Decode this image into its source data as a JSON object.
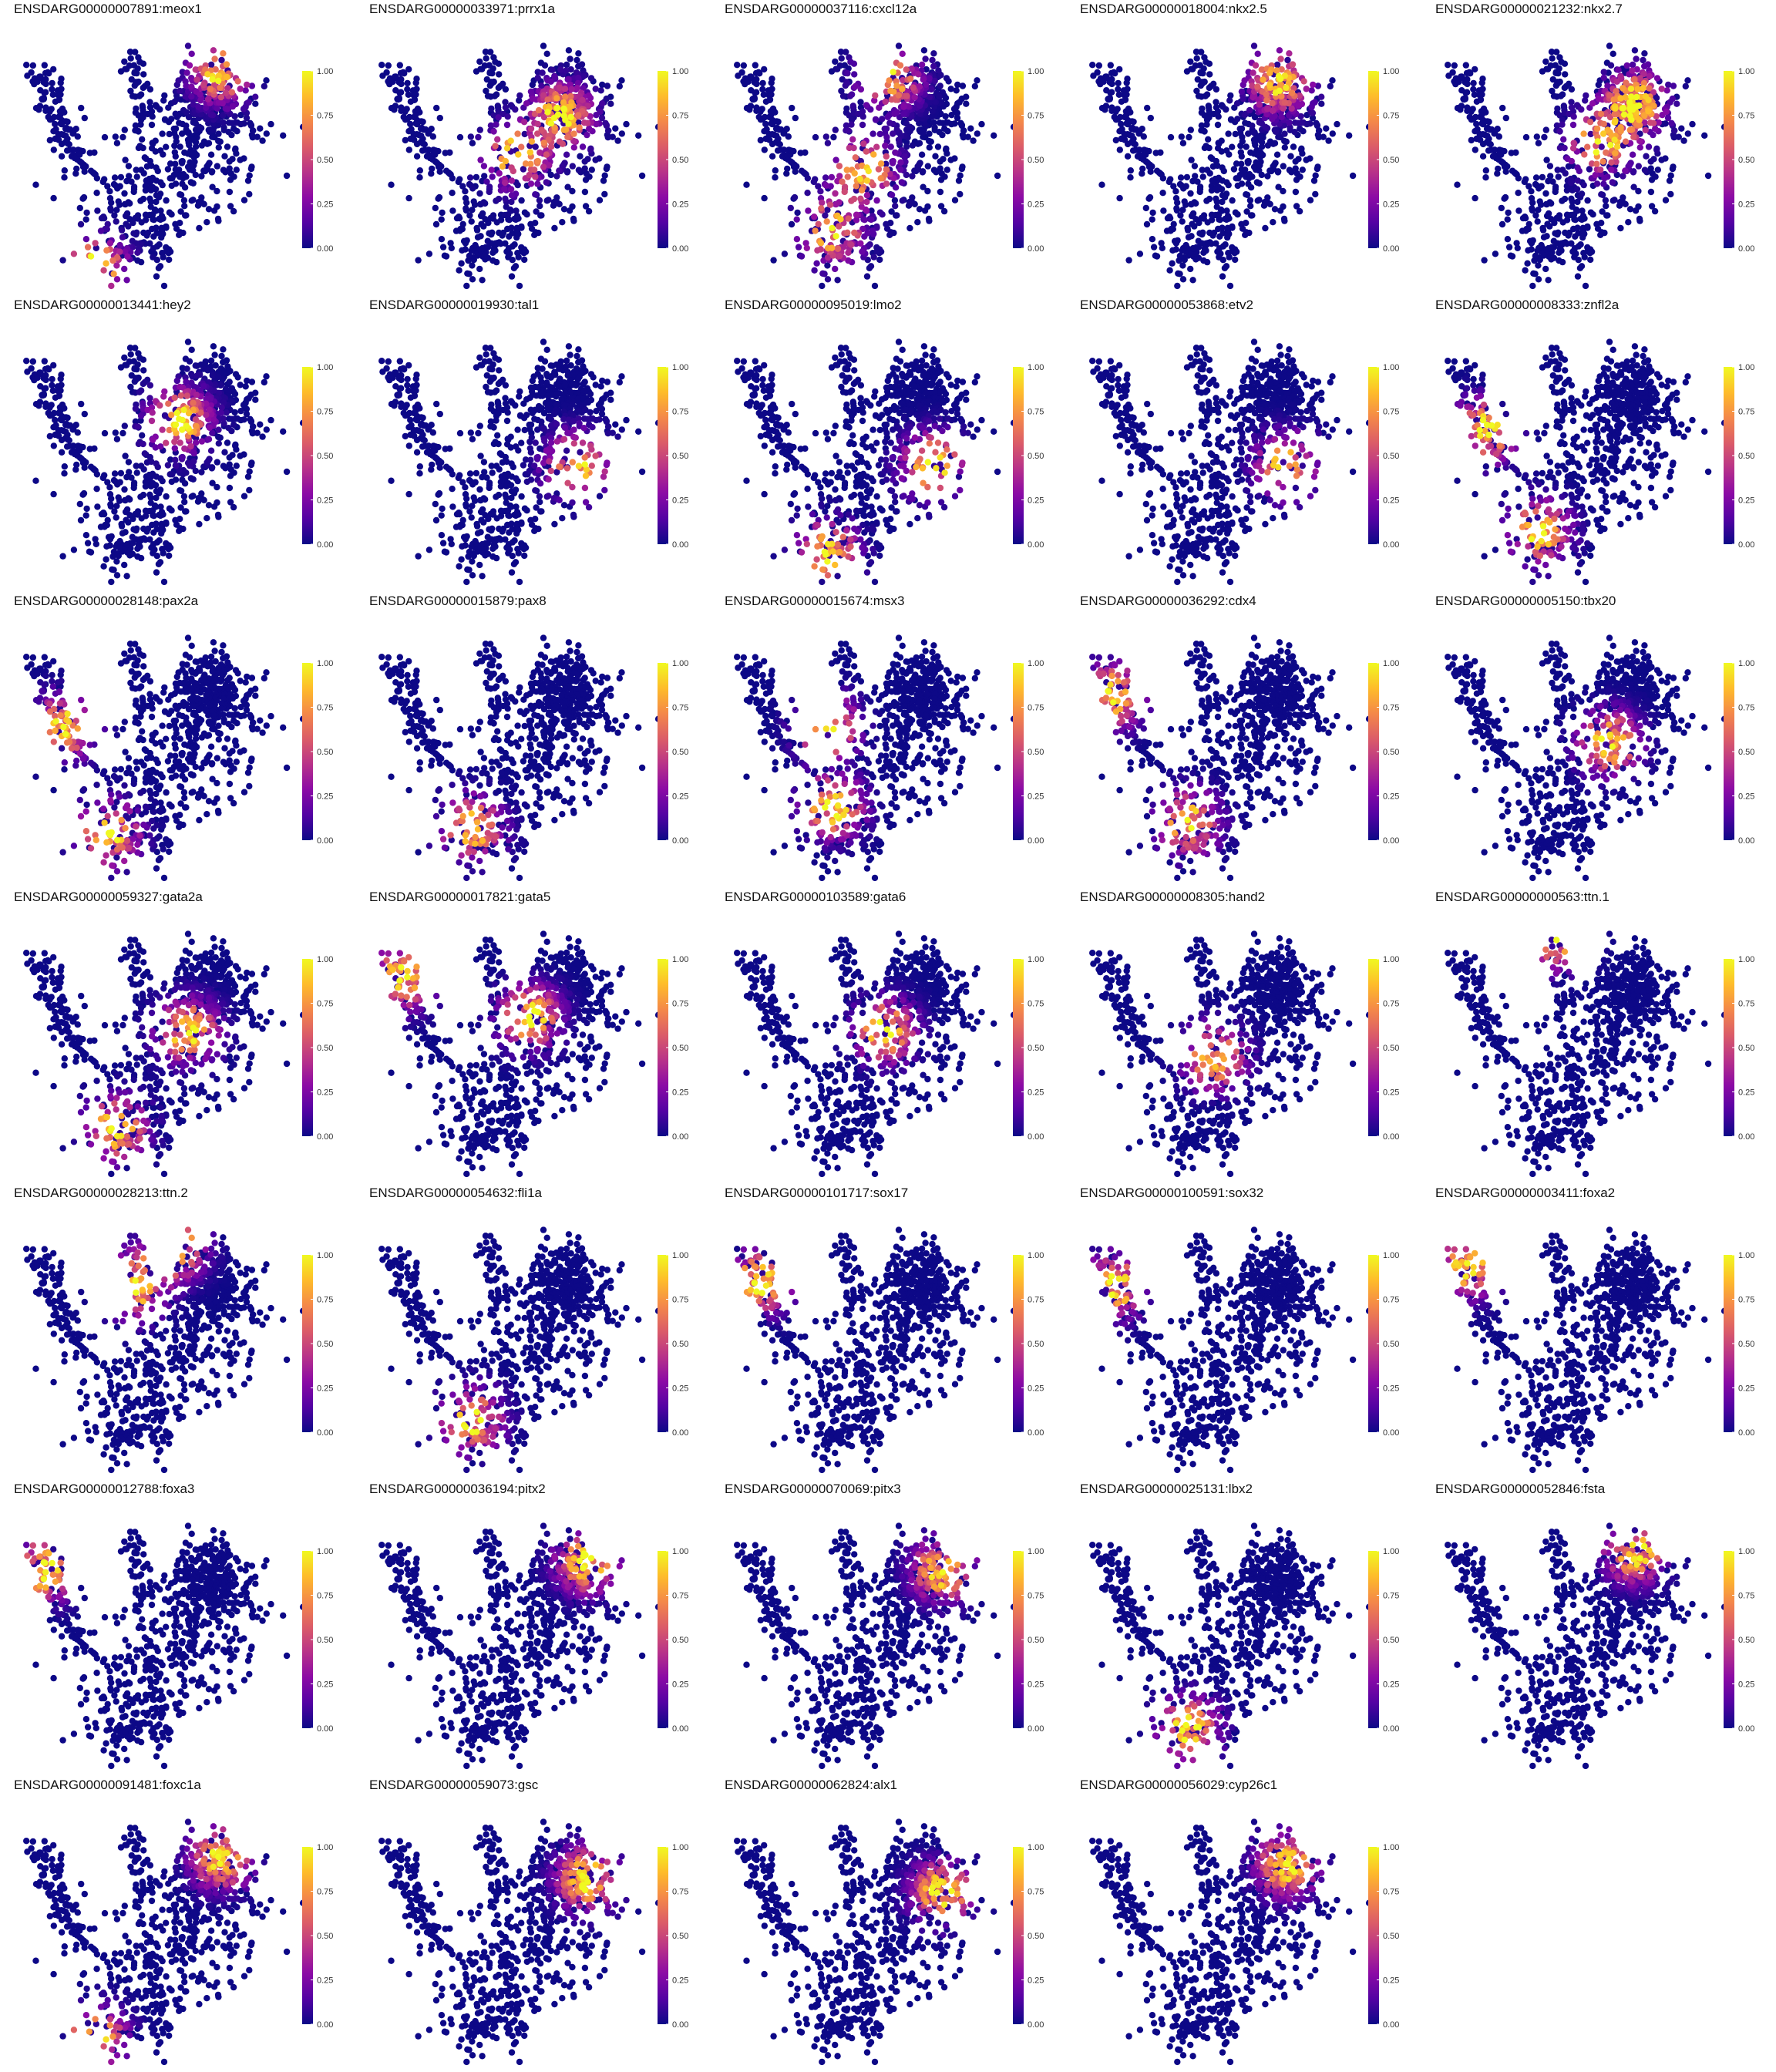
{
  "chart_data": {
    "type": "scatter",
    "description_note": "Grid of single-cell feature plots; each panel colored by scaled expression of one gene on a shared 2D embedding.",
    "color_scale": {
      "name": "plasma",
      "stops": [
        "#0d0887",
        "#5302a3",
        "#8b0aa5",
        "#b83289",
        "#db5c68",
        "#f48849",
        "#febc2a",
        "#f0f921"
      ],
      "min": 0.0,
      "max": 1.0,
      "ticks": [
        "0.00",
        "0.25",
        "0.50",
        "0.75",
        "1.00"
      ]
    },
    "legend": "right",
    "grid": false,
    "panels": [
      {
        "title": "ENSDARG00000007891:meox1",
        "hotspots": [
          [
            0.78,
            0.18
          ],
          [
            0.3,
            0.92
          ]
        ]
      },
      {
        "title": "ENSDARG00000033971:prrx1a",
        "hotspots": [
          [
            0.72,
            0.35
          ],
          [
            0.55,
            0.5
          ]
        ]
      },
      {
        "title": "ENSDARG00000037116:cxcl12a",
        "hotspots": [
          [
            0.52,
            0.55
          ],
          [
            0.4,
            0.78
          ],
          [
            0.62,
            0.2
          ]
        ]
      },
      {
        "title": "ENSDARG00000018004:nkx2.5",
        "hotspots": [
          [
            0.75,
            0.22
          ]
        ]
      },
      {
        "title": "ENSDARG00000021232:nkx2.7",
        "hotspots": [
          [
            0.75,
            0.3
          ],
          [
            0.62,
            0.45
          ]
        ]
      },
      {
        "title": "ENSDARG00000013441:hey2",
        "hotspots": [
          [
            0.62,
            0.38
          ]
        ]
      },
      {
        "title": "ENSDARG00000019930:tal1",
        "hotspots": [
          [
            0.78,
            0.55
          ]
        ]
      },
      {
        "title": "ENSDARG00000095019:lmo2",
        "hotspots": [
          [
            0.78,
            0.55
          ],
          [
            0.38,
            0.88
          ]
        ]
      },
      {
        "title": "ENSDARG00000053868:etv2",
        "hotspots": [
          [
            0.78,
            0.55
          ]
        ]
      },
      {
        "title": "ENSDARG00000008333:znfl2a",
        "hotspots": [
          [
            0.38,
            0.8
          ],
          [
            0.18,
            0.42
          ]
        ]
      },
      {
        "title": "ENSDARG00000028148:pax2a",
        "hotspots": [
          [
            0.35,
            0.82
          ],
          [
            0.18,
            0.42
          ]
        ]
      },
      {
        "title": "ENSDARG00000015879:pax8",
        "hotspots": [
          [
            0.38,
            0.8
          ]
        ]
      },
      {
        "title": "ENSDARG00000015674:msx3",
        "hotspots": [
          [
            0.4,
            0.72
          ],
          [
            0.38,
            0.42
          ]
        ]
      },
      {
        "title": "ENSDARG00000036292:cdx4",
        "hotspots": [
          [
            0.4,
            0.78
          ],
          [
            0.12,
            0.3
          ]
        ]
      },
      {
        "title": "ENSDARG00000005150:tbx20",
        "hotspots": [
          [
            0.65,
            0.48
          ]
        ]
      },
      {
        "title": "ENSDARG00000059327:gata2a",
        "hotspots": [
          [
            0.65,
            0.45
          ],
          [
            0.38,
            0.82
          ]
        ]
      },
      {
        "title": "ENSDARG00000017821:gata5",
        "hotspots": [
          [
            0.6,
            0.4
          ],
          [
            0.12,
            0.25
          ]
        ]
      },
      {
        "title": "ENSDARG00000103589:gata6",
        "hotspots": [
          [
            0.6,
            0.45
          ]
        ]
      },
      {
        "title": "ENSDARG00000008305:hand2",
        "hotspots": [
          [
            0.5,
            0.55
          ]
        ]
      },
      {
        "title": "ENSDARG00000000563:ttn.1",
        "hotspots": [
          [
            0.45,
            0.1
          ]
        ]
      },
      {
        "title": "ENSDARG00000028213:ttn.2",
        "hotspots": [
          [
            0.45,
            0.3
          ],
          [
            0.6,
            0.15
          ]
        ]
      },
      {
        "title": "ENSDARG00000054632:fli1a",
        "hotspots": [
          [
            0.38,
            0.8
          ]
        ]
      },
      {
        "title": "ENSDARG00000101717:sox17",
        "hotspots": [
          [
            0.12,
            0.28
          ]
        ]
      },
      {
        "title": "ENSDARG00000100591:sox32",
        "hotspots": [
          [
            0.12,
            0.3
          ]
        ]
      },
      {
        "title": "ENSDARG00000003411:foxa2",
        "hotspots": [
          [
            0.12,
            0.22
          ]
        ]
      },
      {
        "title": "ENSDARG00000012788:foxa3",
        "hotspots": [
          [
            0.1,
            0.25
          ]
        ]
      },
      {
        "title": "ENSDARG00000036194:pitx2",
        "hotspots": [
          [
            0.82,
            0.22
          ]
        ]
      },
      {
        "title": "ENSDARG00000070069:pitx3",
        "hotspots": [
          [
            0.82,
            0.25
          ]
        ]
      },
      {
        "title": "ENSDARG00000025131:lbx2",
        "hotspots": [
          [
            0.4,
            0.85
          ]
        ]
      },
      {
        "title": "ENSDARG00000052846:fsta",
        "hotspots": [
          [
            0.75,
            0.18
          ]
        ]
      },
      {
        "title": "ENSDARG00000091481:foxc1a",
        "hotspots": [
          [
            0.78,
            0.22
          ],
          [
            0.3,
            0.9
          ]
        ]
      },
      {
        "title": "ENSDARG00000059073:gsc",
        "hotspots": [
          [
            0.82,
            0.3
          ]
        ]
      },
      {
        "title": "ENSDARG00000062824:alx1",
        "hotspots": [
          [
            0.82,
            0.35
          ]
        ]
      },
      {
        "title": "ENSDARG00000056029:cyp26c1",
        "hotspots": [
          [
            0.78,
            0.25
          ]
        ]
      }
    ]
  }
}
